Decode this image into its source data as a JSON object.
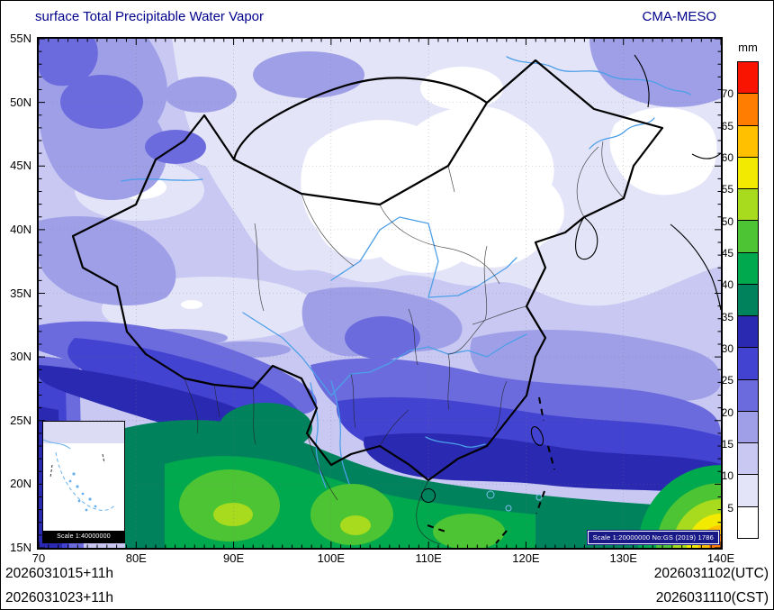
{
  "header": {
    "title": "surface Total Precipitable Water Vapor",
    "model": "CMA-MESO",
    "text_color": "#00008b"
  },
  "colorbar": {
    "unit": "mm",
    "levels": [
      {
        "label": "70",
        "color": "#f81400"
      },
      {
        "label": "65",
        "color": "#ff7d00"
      },
      {
        "label": "60",
        "color": "#ffc000"
      },
      {
        "label": "55",
        "color": "#f2ea00"
      },
      {
        "label": "50",
        "color": "#a8da1e"
      },
      {
        "label": "45",
        "color": "#4cc433"
      },
      {
        "label": "40",
        "color": "#00a84e"
      },
      {
        "label": "35",
        "color": "#00835c"
      },
      {
        "label": "30",
        "color": "#2929b2"
      },
      {
        "label": "25",
        "color": "#4343d2"
      },
      {
        "label": "20",
        "color": "#6b6bde"
      },
      {
        "label": "15",
        "color": "#9f9fe8"
      },
      {
        "label": "10",
        "color": "#c8c8f2"
      },
      {
        "label": "5",
        "color": "#e4e4f9"
      },
      {
        "label": "",
        "color": "#ffffff"
      }
    ]
  },
  "axes": {
    "y_ticks": [
      "55N",
      "50N",
      "45N",
      "40N",
      "35N",
      "30N",
      "25N",
      "20N",
      "15N"
    ],
    "x_ticks": [
      "70",
      "80E",
      "90E",
      "100E",
      "110E",
      "120E",
      "130E",
      "140E"
    ]
  },
  "footer": {
    "left1": "2026031015+11h",
    "left2": "2026031023+11h",
    "right1": "2026031102(UTC)",
    "right2": "2026031110(CST)"
  },
  "inset": {
    "scale_label": "Scale 1:40000000"
  },
  "map": {
    "license_label": "Scale 1:20000000 No:GS (2019) 1786"
  }
}
